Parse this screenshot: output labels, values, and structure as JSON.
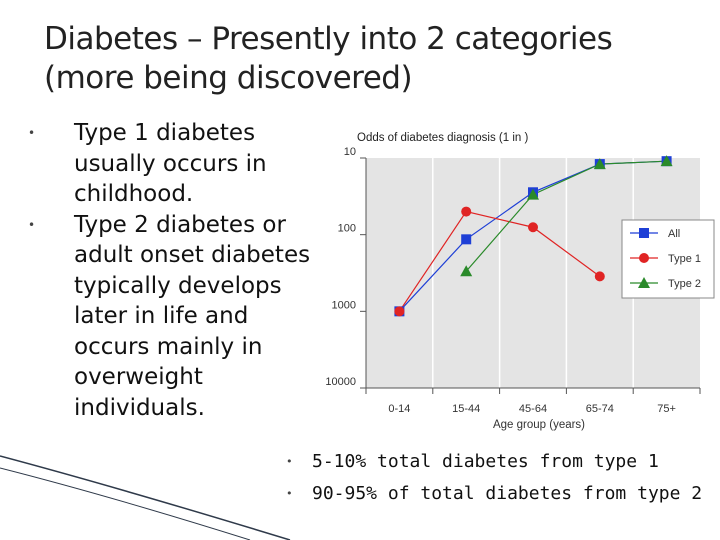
{
  "slide": {
    "title": "Diabetes – Presently into 2 categories (more being discovered)",
    "left_bullets": [
      "Type 1 diabetes usually occurs in childhood.",
      "Type 2 diabetes or adult onset diabetes typically develops later in life and occurs mainly in overweight individuals."
    ],
    "bottom_bullets": [
      "5-10% total diabetes from type 1",
      "90-95% of total diabetes from type 2"
    ]
  },
  "chart_data": {
    "type": "line",
    "title": "Odds of diabetes diagnosis (1 in )",
    "xlabel": "Age group (years)",
    "ylabel": "",
    "categories": [
      "0-14",
      "15-44",
      "45-64",
      "65-74",
      "75+"
    ],
    "y_scale": "log",
    "y_inverted": true,
    "ylim": [
      10,
      10000
    ],
    "y_ticks": [
      10,
      100,
      1000,
      10000
    ],
    "y_tick_labels": [
      "10",
      "100",
      "1000",
      "10000"
    ],
    "grid": "vertical",
    "legend_position": "right",
    "series": [
      {
        "name": "All",
        "color": "#1e3fd6",
        "marker": "square",
        "values": [
          1000,
          115,
          28,
          12,
          11
        ]
      },
      {
        "name": "Type 1",
        "color": "#e02424",
        "marker": "circle",
        "values": [
          1000,
          50,
          80,
          null,
          350
        ]
      },
      {
        "name": "Type 2",
        "color": "#2a8a2a",
        "marker": "triangle",
        "values": [
          null,
          300,
          30,
          12,
          11
        ]
      }
    ],
    "series_x_index": [
      [
        0,
        1,
        2,
        3,
        4
      ],
      [
        0,
        1,
        2,
        3,
        3
      ],
      [
        0,
        1,
        2,
        3,
        4
      ]
    ],
    "colors": {
      "plot_bg": "#e4e4e4",
      "grid": "#ffffff",
      "axis": "#555555"
    }
  }
}
